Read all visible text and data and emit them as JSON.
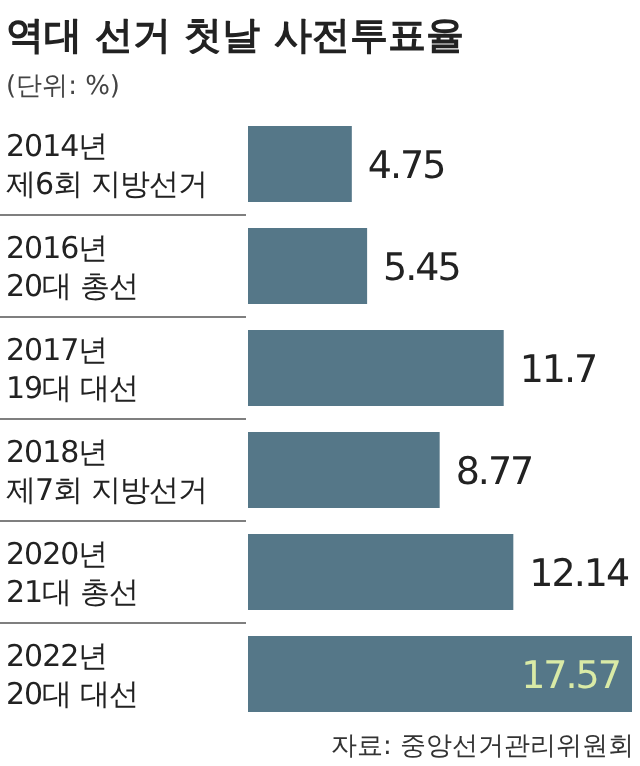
{
  "chart_data": {
    "type": "bar",
    "orientation": "horizontal",
    "title": "역대 선거 첫날 사전투표율",
    "subtitle": "(단위: %)",
    "categories": [
      "2014년\n제6회 지방선거",
      "2016년\n20대 총선",
      "2017년\n19대 대선",
      "2018년\n제7회 지방선거",
      "2020년\n21대 총선",
      "2022년\n20대 대선"
    ],
    "values": [
      4.75,
      5.45,
      11.7,
      8.77,
      12.14,
      17.57
    ],
    "color": "#557788",
    "data_labels": true,
    "annotations": [
      "자료: 중앙선거관리위원회"
    ]
  }
}
